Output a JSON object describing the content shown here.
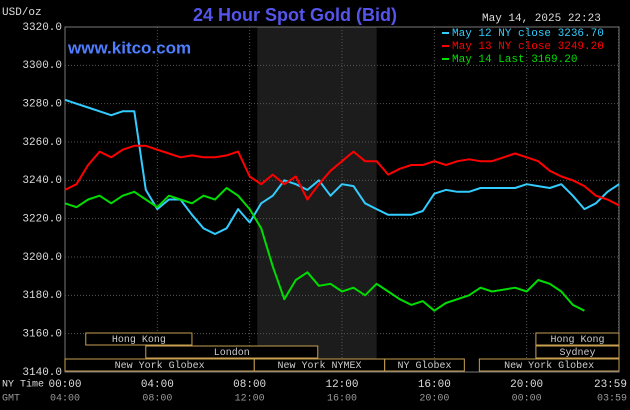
{
  "chart_data": {
    "type": "line",
    "title": "24 Hour Spot Gold (Bid)",
    "source": "www.kitco.com",
    "timestamp": "May 14, 2025 22:23",
    "y_label": "USD/oz",
    "x_label": "NY Time",
    "x2_label": "GMT",
    "x": [
      0,
      0.5,
      1,
      1.5,
      2,
      2.5,
      3,
      3.5,
      4,
      4.5,
      5,
      5.5,
      6,
      6.5,
      7,
      7.5,
      8,
      8.5,
      9,
      9.5,
      10,
      10.5,
      11,
      11.5,
      12,
      12.5,
      13,
      13.5,
      14,
      14.5,
      15,
      15.5,
      16,
      16.5,
      17,
      17.5,
      18,
      18.5,
      19,
      19.5,
      20,
      20.5,
      21,
      21.5,
      22,
      22.5,
      23,
      23.5,
      24
    ],
    "series": [
      {
        "name": "May 12 NY close 3236.70",
        "color": "#33ccff",
        "values": [
          3282,
          3280,
          3278,
          3276,
          3274,
          3276,
          3276,
          3235,
          3225,
          3230,
          3230,
          3222,
          3215,
          3212,
          3215,
          3225,
          3218,
          3228,
          3232,
          3240,
          3238,
          3235,
          3240,
          3232,
          3238,
          3237,
          3228,
          3225,
          3222,
          3222,
          3222,
          3224,
          3233,
          3235,
          3234,
          3234,
          3236,
          3236,
          3236,
          3236,
          3238,
          3237,
          3236,
          3238,
          3232,
          3225,
          3228,
          3234,
          3238
        ]
      },
      {
        "name": "May 13 NY close 3249.20",
        "color": "#ff0000",
        "values": [
          3235,
          3238,
          3248,
          3255,
          3252,
          3256,
          3258,
          3258,
          3256,
          3254,
          3252,
          3253,
          3252,
          3252,
          3253,
          3255,
          3242,
          3238,
          3243,
          3238,
          3242,
          3230,
          3238,
          3245,
          3250,
          3255,
          3250,
          3250,
          3243,
          3246,
          3248,
          3248,
          3250,
          3248,
          3250,
          3251,
          3250,
          3250,
          3252,
          3254,
          3252,
          3250,
          3245,
          3242,
          3240,
          3237,
          3232,
          3230,
          3227
        ]
      },
      {
        "name": "May 14 Last 3169.20",
        "color": "#00dd00",
        "values": [
          3228,
          3226,
          3230,
          3232,
          3228,
          3232,
          3234,
          3230,
          3226,
          3232,
          3230,
          3228,
          3232,
          3230,
          3236,
          3232,
          3225,
          3215,
          3195,
          3178,
          3188,
          3192,
          3185,
          3186,
          3182,
          3184,
          3180,
          3186,
          3182,
          3178,
          3175,
          3177,
          3172,
          3176,
          3178,
          3180,
          3184,
          3182,
          3183,
          3184,
          3182,
          3188,
          3186,
          3182,
          3175,
          3172,
          null,
          null,
          null
        ]
      }
    ],
    "xlim": [
      0,
      24
    ],
    "xticks": [
      {
        "value": 0,
        "label": "00:00"
      },
      {
        "value": 4,
        "label": "04:00"
      },
      {
        "value": 8,
        "label": "08:00"
      },
      {
        "value": 12,
        "label": "12:00"
      },
      {
        "value": 16,
        "label": "16:00"
      },
      {
        "value": 20,
        "label": "20:00"
      },
      {
        "value": 23.98,
        "label": "23:59"
      }
    ],
    "x2ticks": [
      {
        "value": 0,
        "label": "04:00"
      },
      {
        "value": 4,
        "label": "08:00"
      },
      {
        "value": 8,
        "label": "12:00"
      },
      {
        "value": 12,
        "label": "16:00"
      },
      {
        "value": 16,
        "label": "20:00"
      },
      {
        "value": 20,
        "label": "00:00"
      },
      {
        "value": 23.98,
        "label": "03:59"
      }
    ],
    "ylim": [
      3140,
      3320
    ],
    "yticks": [
      {
        "value": 3140,
        "label": "3140.0"
      },
      {
        "value": 3160,
        "label": "3160.0"
      },
      {
        "value": 3180,
        "label": "3180.0"
      },
      {
        "value": 3200,
        "label": "3200.0"
      },
      {
        "value": 3220,
        "label": "3220.0"
      },
      {
        "value": 3240,
        "label": "3240.0"
      },
      {
        "value": 3260,
        "label": "3260.0"
      },
      {
        "value": 3280,
        "label": "3280.0"
      },
      {
        "value": 3300,
        "label": "3300.0"
      },
      {
        "value": 3320,
        "label": "3320.0"
      }
    ],
    "grid": true,
    "highlight_range": [
      8.33,
      13.5
    ],
    "sessions": [
      [
        {
          "name": "Hong Kong",
          "start": 0.9,
          "end": 5.5
        },
        {
          "name": "Hong Kong",
          "start": 20.4,
          "end": 24
        }
      ],
      [
        {
          "name": "London",
          "start": 3.5,
          "end": 10.95
        },
        {
          "name": "Sydney",
          "start": 20.4,
          "end": 24
        }
      ],
      [
        {
          "name": "New York Globex",
          "start": 0,
          "end": 8.2
        },
        {
          "name": "New York NYMEX",
          "start": 8.2,
          "end": 13.85
        },
        {
          "name": "NY Globex",
          "start": 13.85,
          "end": 17.3
        },
        {
          "name": "New York Globex",
          "start": 17.95,
          "end": 24
        }
      ]
    ]
  }
}
